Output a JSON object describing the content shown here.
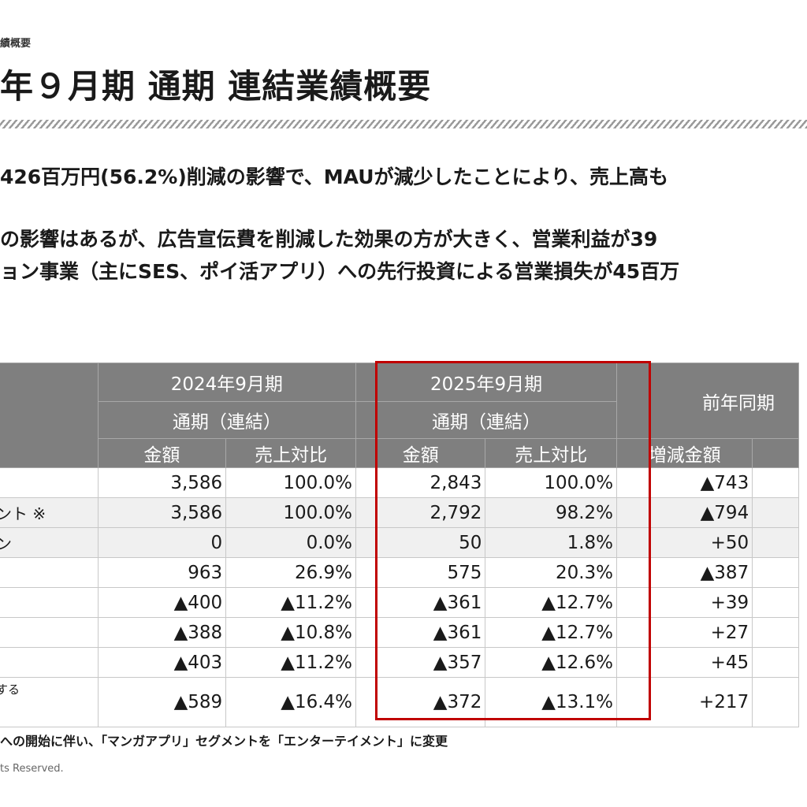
{
  "header": {
    "breadcrumb": "績概要",
    "title": "年９月期 通期 連結業績概要"
  },
  "summary": {
    "line1": "426百万円(56.2%)削減の影響で、MAUが減少したことにより、売上高も",
    "line2": "の影響はあるが、広告宣伝費を削減した効果の方が大きく、営業利益が39",
    "line3": "ョン事業（主にSES、ポイ活アプリ）への先行投資による営業損失が45百万"
  },
  "table": {
    "col_groups": [
      {
        "period": "2024年9月期",
        "scope": "通期（連結）"
      },
      {
        "period": "2025年9月期",
        "scope": "通期（連結）"
      },
      {
        "label": "前年同期"
      }
    ],
    "sub_headers": [
      "金額",
      "売上対比",
      "金額",
      "売上対比",
      "増減金額"
    ],
    "rows": [
      {
        "label": "",
        "c": [
          "3,586",
          "100.0%",
          "2,843",
          "100.0%",
          "▲743"
        ]
      },
      {
        "label": "ント ※",
        "c": [
          "3,586",
          "100.0%",
          "2,792",
          "98.2%",
          "▲794"
        ]
      },
      {
        "label": "ン",
        "c": [
          "0",
          "0.0%",
          "50",
          "1.8%",
          "+50"
        ]
      },
      {
        "label": "",
        "c": [
          "963",
          "26.9%",
          "575",
          "20.3%",
          "▲387"
        ]
      },
      {
        "label": "",
        "c": [
          "▲400",
          "▲11.2%",
          "▲361",
          "▲12.7%",
          "+39"
        ]
      },
      {
        "label": "",
        "c": [
          "▲388",
          "▲10.8%",
          "▲361",
          "▲12.7%",
          "+27"
        ]
      },
      {
        "label": "",
        "c": [
          "▲403",
          "▲11.2%",
          "▲357",
          "▲12.6%",
          "+45"
        ]
      },
      {
        "label": "する",
        "c": [
          "▲589",
          "▲16.4%",
          "▲372",
          "▲13.1%",
          "+217"
        ]
      }
    ],
    "highlight_color": "#c00000",
    "header_color": "#7f7f7f"
  },
  "footnote": "への開始に伴い、「マンガアプリ」セグメントを「エンターテイメント」に変更",
  "copyright": "ts Reserved."
}
